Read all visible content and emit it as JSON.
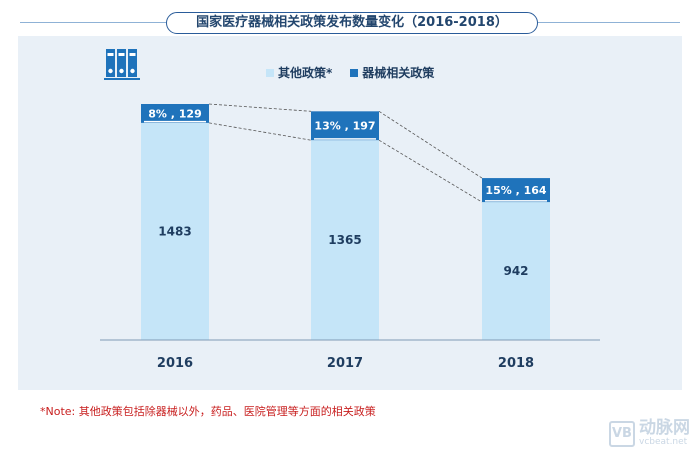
{
  "title": "国家医疗器械相关政策发布数量变化（2016-2018）",
  "legend": {
    "other_label": "其他政策*",
    "device_label": "器械相关政策"
  },
  "note": "*Note: 其他政策包括除器械以外，药品、医院管理等方面的相关政策",
  "watermark": {
    "logo": "VB",
    "cn": "动脉网",
    "en": "vcbeat.net"
  },
  "colors": {
    "other": "#c5e5f8",
    "device": "#1f73bb",
    "title_border": "#2a5c9a",
    "panel": "#e9f0f7",
    "note": "#c81e1e"
  },
  "icon": "binders-icon",
  "chart_data": {
    "type": "bar",
    "stacked": true,
    "categories": [
      "2016",
      "2017",
      "2018"
    ],
    "series": [
      {
        "name": "其他政策*",
        "values": [
          1483,
          1365,
          942
        ]
      },
      {
        "name": "器械相关政策",
        "values": [
          129,
          197,
          164
        ]
      }
    ],
    "device_labels": [
      "8% , 129",
      "13% , 197",
      "15% , 164"
    ],
    "other_labels": [
      "1483",
      "1365",
      "942"
    ],
    "ylim": [
      0,
      1612
    ]
  }
}
